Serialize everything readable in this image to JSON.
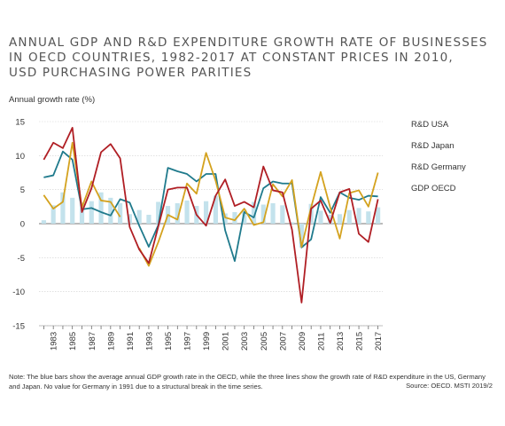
{
  "title_lines": [
    "ANNUAL GDP AND R&D EXPENDITURE GROWTH RATE OF BUSINESSES",
    "IN OECD COUNTRIES, 1982-2017 AT CONSTANT PRICES IN 2010,",
    "USD PURCHASING POWER PARITIES"
  ],
  "note": "Note: The blue bars show the average annual GDP growth rate in the OECD, while the three lines show the growth rate of R&D expenditure in the US, Germany and Japan. No value for Germany in 1991 due to a structural break in the time series.",
  "source": "Source: OECD. MSTI 2019/2",
  "colors": {
    "usa": "#1f7a8c",
    "japan": "#b01e24",
    "germany": "#d4a21e",
    "gdp": "#c3e2ec",
    "axis": "#555555"
  },
  "chart_data": {
    "type": "line",
    "ylabel": "Annual growth rate (%)",
    "xlabel": "",
    "ylim": [
      -15,
      15
    ],
    "yticks": [
      15,
      10,
      5,
      0,
      -5,
      -10,
      -15
    ],
    "x": [
      1982,
      1983,
      1984,
      1985,
      1986,
      1987,
      1988,
      1989,
      1990,
      1991,
      1992,
      1993,
      1994,
      1995,
      1996,
      1997,
      1998,
      1999,
      2000,
      2001,
      2002,
      2003,
      2004,
      2005,
      2006,
      2007,
      2008,
      2009,
      2010,
      2011,
      2012,
      2013,
      2014,
      2015,
      2016,
      2017
    ],
    "xticks": [
      1983,
      1985,
      1987,
      1989,
      1991,
      1993,
      1995,
      1997,
      1999,
      2001,
      2003,
      2005,
      2007,
      2009,
      2011,
      2013,
      2015,
      2017
    ],
    "grid": true,
    "legend_position": "right",
    "bars": {
      "name": "GDP OECD",
      "values": [
        0.5,
        2.7,
        4.6,
        3.8,
        3.1,
        3.3,
        4.6,
        3.8,
        3.0,
        1.4,
        2.0,
        1.3,
        3.2,
        2.6,
        3.0,
        3.4,
        2.6,
        3.3,
        4.1,
        1.5,
        1.7,
        2.1,
        3.2,
        2.8,
        3.0,
        2.7,
        0.2,
        -3.5,
        2.9,
        1.9,
        1.3,
        1.4,
        2.0,
        2.3,
        1.8,
        2.4
      ]
    },
    "series": [
      {
        "name": "R&D USA",
        "key": "usa",
        "values": [
          6.8,
          7.1,
          10.6,
          9.4,
          2.1,
          2.3,
          1.7,
          1.2,
          3.6,
          3.1,
          -0.3,
          -3.4,
          -0.2,
          8.2,
          7.7,
          7.3,
          6.2,
          7.3,
          7.3,
          -1.0,
          -5.5,
          1.7,
          0.9,
          5.2,
          6.2,
          5.9,
          5.9,
          -3.5,
          -2.3,
          3.9,
          1.6,
          4.6,
          3.8,
          3.5,
          4.1,
          4.0
        ]
      },
      {
        "name": "R&D Japan",
        "key": "japan",
        "values": [
          9.4,
          11.9,
          11.1,
          14.1,
          1.7,
          5.2,
          10.5,
          11.7,
          9.6,
          -0.5,
          -3.8,
          -5.8,
          -0.4,
          5.0,
          5.3,
          5.3,
          1.3,
          -0.3,
          4.1,
          6.5,
          2.6,
          3.2,
          2.4,
          8.4,
          4.9,
          4.6,
          -0.9,
          -11.6,
          2.2,
          3.4,
          0.1,
          4.6,
          5.1,
          -1.5,
          -2.7,
          3.6
        ]
      },
      {
        "name": "R&D Germany",
        "key": "germany",
        "values": [
          4.2,
          2.2,
          3.2,
          11.9,
          2.4,
          6.2,
          3.4,
          3.2,
          1.0,
          null,
          -3.6,
          -6.2,
          -2.7,
          1.3,
          0.6,
          5.9,
          4.4,
          10.4,
          6.3,
          0.9,
          0.5,
          2.2,
          -0.2,
          0.2,
          5.8,
          4.0,
          6.4,
          -3.4,
          2.4,
          7.6,
          2.4,
          -2.2,
          4.5,
          4.9,
          2.5,
          7.5
        ]
      }
    ]
  }
}
